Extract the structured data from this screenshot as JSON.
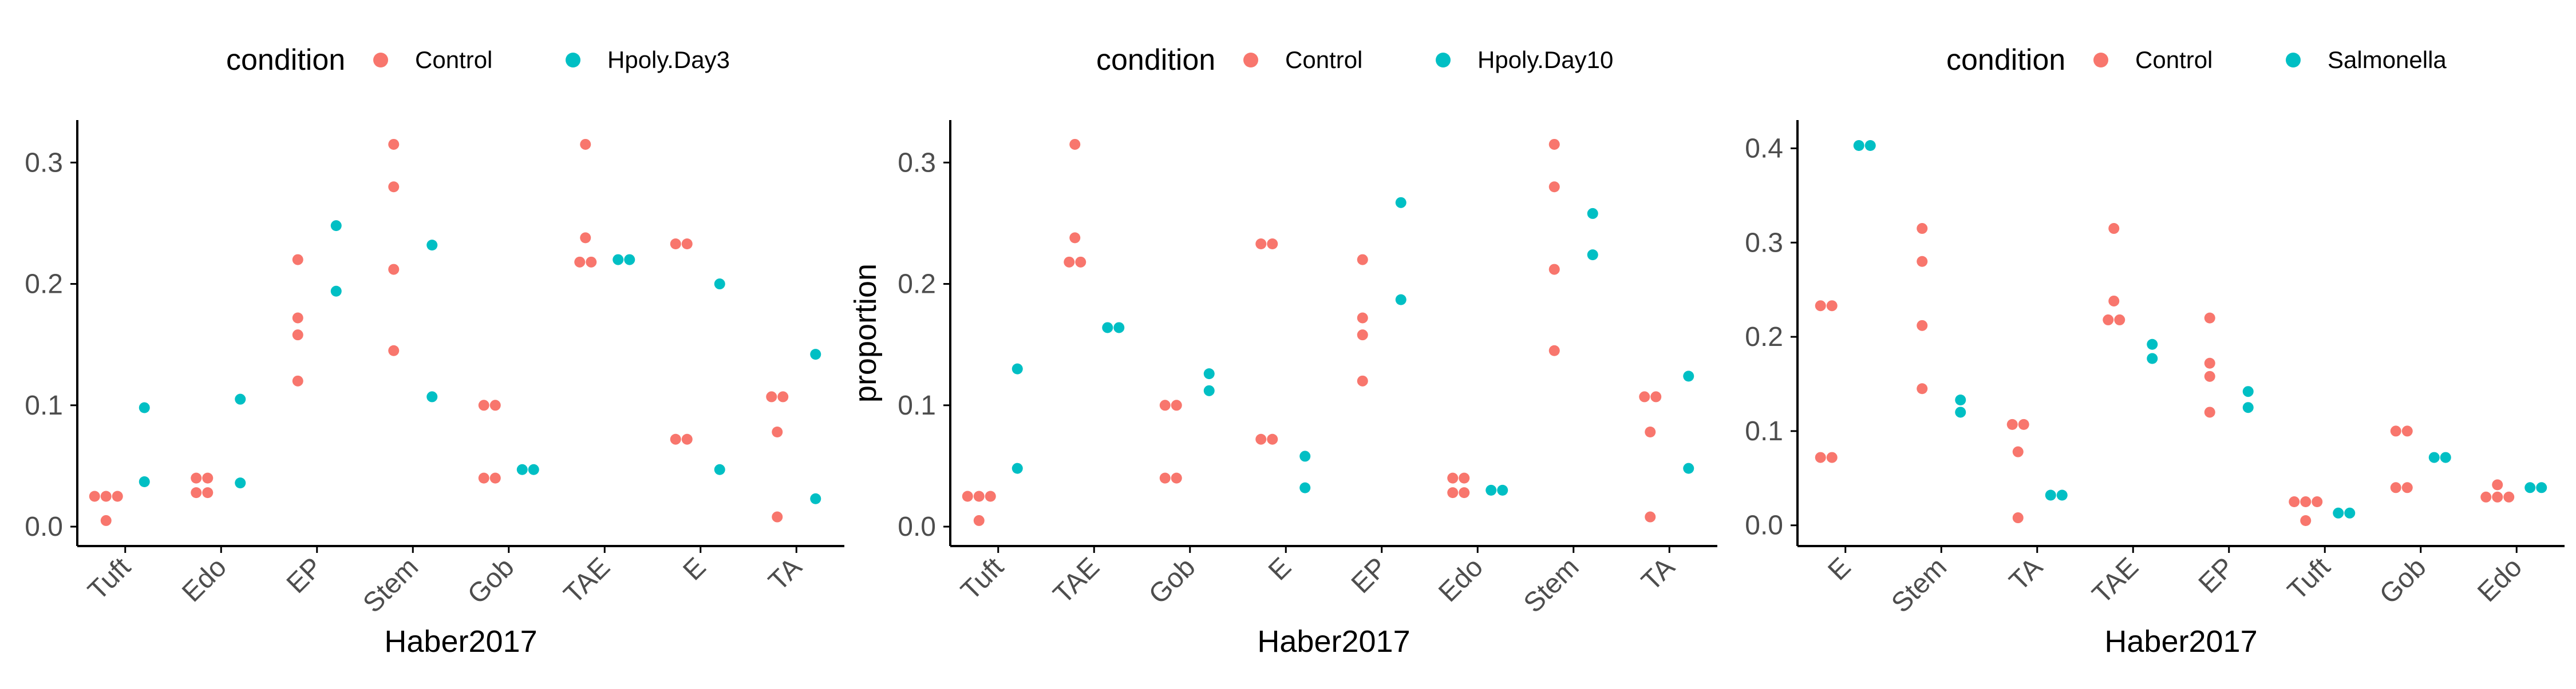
{
  "colors": {
    "control": "#F8766D",
    "treatment": "#00BFC4",
    "axis": "#000000",
    "tick_label": "#4D4D4D",
    "text": "#000000"
  },
  "chart_data": [
    {
      "type": "scatter",
      "legend_title": "condition",
      "legend_position": "top",
      "series_names": [
        "Control",
        "Hpoly.Day3"
      ],
      "xlabel": "Haber2017",
      "ylabel": "",
      "categories": [
        "Tuft",
        "Edo",
        "EP",
        "Stem",
        "Gob",
        "TAE",
        "E",
        "TA"
      ],
      "ylim": [
        -0.016,
        0.335
      ],
      "yticks": [
        0.0,
        0.1,
        0.2,
        0.3
      ],
      "ytick_labels": [
        "0.0",
        "0.1",
        "0.2",
        "0.3"
      ],
      "grid": false,
      "points": {
        "Control": {
          "Tuft": [
            0.025,
            0.025,
            0.025,
            0.005
          ],
          "Edo": [
            0.04,
            0.04,
            0.028,
            0.028
          ],
          "EP": [
            0.22,
            0.172,
            0.158,
            0.12
          ],
          "Stem": [
            0.315,
            0.28,
            0.212,
            0.145
          ],
          "Gob": [
            0.1,
            0.1,
            0.04,
            0.04
          ],
          "TAE": [
            0.315,
            0.238,
            0.218,
            0.218
          ],
          "E": [
            0.233,
            0.233,
            0.072,
            0.072
          ],
          "TA": [
            0.107,
            0.107,
            0.078,
            0.008
          ]
        },
        "Hpoly.Day3": {
          "Tuft": [
            0.098,
            0.037
          ],
          "Edo": [
            0.105,
            0.036
          ],
          "EP": [
            0.248,
            0.194
          ],
          "Stem": [
            0.232,
            0.107
          ],
          "Gob": [
            0.047,
            0.047
          ],
          "TAE": [
            0.22,
            0.22
          ],
          "E": [
            0.2,
            0.047
          ],
          "TA": [
            0.142,
            0.023
          ]
        }
      }
    },
    {
      "type": "scatter",
      "legend_title": "condition",
      "legend_position": "top",
      "series_names": [
        "Control",
        "Hpoly.Day10"
      ],
      "xlabel": "Haber2017",
      "ylabel": "proportion",
      "categories": [
        "Tuft",
        "TAE",
        "Gob",
        "E",
        "EP",
        "Edo",
        "Stem",
        "TA"
      ],
      "ylim": [
        -0.016,
        0.335
      ],
      "yticks": [
        0.0,
        0.1,
        0.2,
        0.3
      ],
      "ytick_labels": [
        "0.0",
        "0.1",
        "0.2",
        "0.3"
      ],
      "grid": false,
      "points": {
        "Control": {
          "Tuft": [
            0.025,
            0.025,
            0.025,
            0.005
          ],
          "TAE": [
            0.315,
            0.238,
            0.218,
            0.218
          ],
          "Gob": [
            0.1,
            0.1,
            0.04,
            0.04
          ],
          "E": [
            0.233,
            0.233,
            0.072,
            0.072
          ],
          "EP": [
            0.22,
            0.172,
            0.158,
            0.12
          ],
          "Edo": [
            0.04,
            0.04,
            0.028,
            0.028
          ],
          "Stem": [
            0.315,
            0.28,
            0.212,
            0.145
          ],
          "TA": [
            0.107,
            0.107,
            0.078,
            0.008
          ]
        },
        "Hpoly.Day10": {
          "Tuft": [
            0.13,
            0.048
          ],
          "TAE": [
            0.164,
            0.164
          ],
          "Gob": [
            0.126,
            0.112
          ],
          "E": [
            0.058,
            0.032
          ],
          "EP": [
            0.267,
            0.187
          ],
          "Edo": [
            0.03,
            0.03
          ],
          "Stem": [
            0.258,
            0.224
          ],
          "TA": [
            0.124,
            0.048
          ]
        }
      }
    },
    {
      "type": "scatter",
      "legend_title": "condition",
      "legend_position": "top",
      "series_names": [
        "Control",
        "Salmonella"
      ],
      "xlabel": "Haber2017",
      "ylabel": "",
      "categories": [
        "E",
        "Stem",
        "TA",
        "TAE",
        "EP",
        "Tuft",
        "Gob",
        "Edo"
      ],
      "ylim": [
        -0.022,
        0.43
      ],
      "yticks": [
        0.0,
        0.1,
        0.2,
        0.3,
        0.4
      ],
      "ytick_labels": [
        "0.0",
        "0.1",
        "0.2",
        "0.3",
        "0.4"
      ],
      "grid": false,
      "points": {
        "Control": {
          "E": [
            0.233,
            0.233,
            0.072,
            0.072
          ],
          "Stem": [
            0.315,
            0.28,
            0.212,
            0.145
          ],
          "TA": [
            0.107,
            0.107,
            0.078,
            0.008
          ],
          "TAE": [
            0.315,
            0.238,
            0.218,
            0.218
          ],
          "EP": [
            0.22,
            0.172,
            0.158,
            0.12
          ],
          "Tuft": [
            0.025,
            0.025,
            0.025,
            0.005
          ],
          "Gob": [
            0.1,
            0.1,
            0.04,
            0.04
          ],
          "Edo": [
            0.043,
            0.03,
            0.03,
            0.03
          ]
        },
        "Salmonella": {
          "E": [
            0.403,
            0.403
          ],
          "Stem": [
            0.133,
            0.12
          ],
          "TA": [
            0.032,
            0.032
          ],
          "TAE": [
            0.192,
            0.177
          ],
          "EP": [
            0.142,
            0.125
          ],
          "Tuft": [
            0.013,
            0.013
          ],
          "Gob": [
            0.072,
            0.072
          ],
          "Edo": [
            0.04,
            0.04
          ]
        }
      }
    }
  ]
}
